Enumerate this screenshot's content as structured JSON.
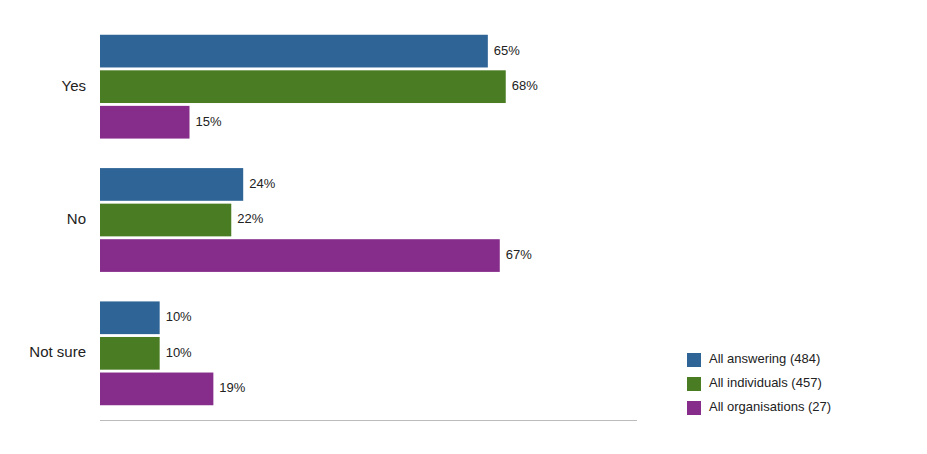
{
  "chart_data": {
    "type": "bar",
    "orientation": "horizontal",
    "categories": [
      "Yes",
      "No",
      "Not sure"
    ],
    "series": [
      {
        "name": "All answering (484)",
        "color": "#2e6496",
        "values": [
          65,
          24,
          10
        ],
        "value_labels": [
          "65%",
          "24%",
          "10%"
        ]
      },
      {
        "name": "All individuals (457)",
        "color": "#4a7c23",
        "values": [
          68,
          22,
          10
        ],
        "value_labels": [
          "68%",
          "22%",
          "10%"
        ]
      },
      {
        "name": "All organisations (27)",
        "color": "#862d8c",
        "values": [
          15,
          67,
          19
        ],
        "value_labels": [
          "15%",
          "67%",
          "19%"
        ]
      }
    ],
    "xlim": [
      0,
      90
    ],
    "data_labels": true,
    "tick_labels": false,
    "grid": false,
    "legend": "lower right"
  }
}
